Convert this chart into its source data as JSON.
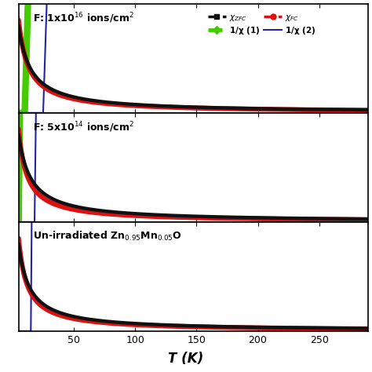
{
  "panels": [
    {
      "label": "F: 1x10$^{16}$ ions/cm$^2$",
      "C": 2.5,
      "T0_zfc": 5,
      "T0_fc": 3,
      "inv_C": 2.5,
      "inv_T0": -10,
      "inv_C_cw": 2.8,
      "inv_T0_cw": -25,
      "ylim": [
        0,
        1.05
      ]
    },
    {
      "label": "F: 5x10$^{14}$ ions/cm$^2$",
      "C": 1.2,
      "T0_zfc": 5,
      "T0_fc": 2,
      "inv_C": 1.5,
      "inv_T0": -5,
      "inv_C_cw": 1.7,
      "inv_T0_cw": -18,
      "ylim": [
        0,
        0.65
      ]
    },
    {
      "label": "Un-irradiated Zn$_{0.95}$Mn$_{0.05}$O",
      "C": 0.85,
      "T0_zfc": 4,
      "T0_fc": 2,
      "inv_C": 1.1,
      "inv_T0": -4,
      "inv_C_cw": 1.25,
      "inv_T0_cw": -15,
      "ylim": [
        0,
        0.5
      ]
    }
  ],
  "T_min": 5,
  "T_max": 290,
  "x_ticks": [
    50,
    100,
    150,
    200,
    250
  ],
  "xlabel": "T (K)",
  "colors": {
    "chi_zfc": "#111111",
    "chi_fc": "#dd1111",
    "inv_chi_exp": "#44cc00",
    "inv_chi_cw": "#2222aa"
  },
  "bg_color": "#ffffff"
}
